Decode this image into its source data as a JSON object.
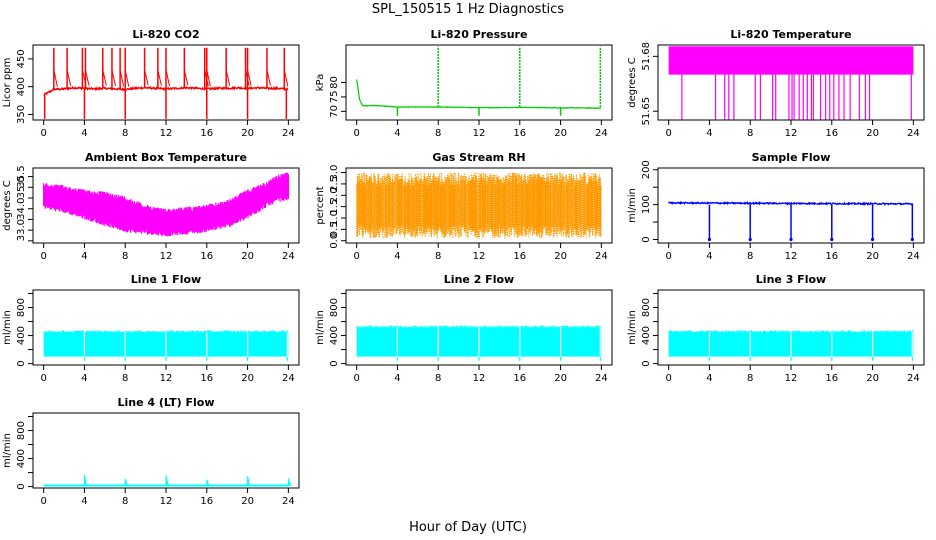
{
  "figure": {
    "title": "SPL_150515  1 Hz Diagnostics",
    "xlabel": "Hour of Day (UTC)"
  },
  "colors": {
    "co2": "#ff0000",
    "pressure": "#00cc00",
    "temperature": "#ff00ff",
    "box_temp": "#ff00ff",
    "rh_fill": "#ff9900",
    "rh_dots": "#cc8800",
    "sample_flow": "#0000ff",
    "line_flow": "#00ffff",
    "axis": "#000000"
  },
  "chart_data": [
    {
      "id": "co2",
      "type": "line",
      "title": "Li-820 CO2",
      "ylabel": "Licor ppm",
      "xlim": [
        0,
        24
      ],
      "ylim": [
        340,
        475
      ],
      "xticks": [
        0,
        4,
        8,
        12,
        16,
        20,
        24
      ],
      "yticks": [
        350,
        400,
        450
      ],
      "x": [
        0,
        1,
        2,
        3,
        4,
        5,
        6,
        7,
        8,
        9,
        10,
        11,
        12,
        13,
        14,
        15,
        16,
        17,
        18,
        19,
        20,
        21,
        22,
        23,
        24
      ],
      "values": [
        385,
        395,
        396,
        398,
        397,
        396,
        397,
        396,
        395,
        397,
        398,
        397,
        396,
        397,
        398,
        397,
        396,
        397,
        397,
        398,
        397,
        398,
        397,
        397,
        395
      ],
      "spikes_up": [
        1.0,
        2.3,
        3.8,
        4.1,
        5.8,
        6.7,
        7.5,
        8.0,
        9.9,
        11.2,
        12.0,
        13.8,
        15.8,
        16.0,
        17.9,
        19.8,
        20.0,
        21.9,
        23.6
      ],
      "spikes_down": [
        0.1,
        4.0,
        8.0,
        12.0,
        16.0,
        20.0,
        23.8
      ]
    },
    {
      "id": "pressure",
      "type": "line",
      "title": "Li-820 Pressure",
      "ylabel": "kPa",
      "xlim": [
        0,
        24
      ],
      "ylim": [
        67,
        93
      ],
      "xticks": [
        0,
        4,
        8,
        12,
        16,
        20,
        24
      ],
      "yticks": [
        70,
        75,
        80
      ],
      "x": [
        0,
        0.3,
        0.6,
        2,
        4,
        6,
        8,
        10,
        12,
        14,
        16,
        18,
        20,
        22,
        24
      ],
      "values": [
        81,
        74,
        72,
        72,
        71.5,
        71.5,
        71.5,
        71.4,
        71.3,
        71.3,
        71.4,
        71.3,
        71.2,
        71.2,
        71.1
      ],
      "spikes_up": [
        8.0,
        16.0,
        23.9
      ],
      "dips": [
        4.0,
        12.0,
        20.0
      ]
    },
    {
      "id": "temperature",
      "type": "area",
      "title": "Li-820 Temperature",
      "ylabel": "degrees C",
      "xlim": [
        0,
        24
      ],
      "ylim": [
        51.6452,
        51.6862
      ],
      "xticks": [
        0,
        4,
        8,
        12,
        16,
        20,
        24
      ],
      "yticks": [
        51.65,
        51.68
      ],
      "ytick_labels": [
        "51.65",
        "51.68"
      ],
      "band_low": 51.67,
      "band_high": 51.6855,
      "drops": [
        1.3,
        4.6,
        5.5,
        5.9,
        6.4,
        8.5,
        9.0,
        10.2,
        10.5,
        11.8,
        12.1,
        12.3,
        12.8,
        13.2,
        13.6,
        14.0,
        14.2,
        14.9,
        15.4,
        15.8,
        16.2,
        16.7,
        17.2,
        17.8,
        18.7,
        19.3,
        19.7,
        23.8
      ]
    },
    {
      "id": "box_temp",
      "type": "area",
      "title": "Ambient Box Temperature",
      "ylabel": "degrees C",
      "xlim": [
        0,
        24
      ],
      "ylim": [
        32.4,
        35.9
      ],
      "xticks": [
        0,
        4,
        8,
        12,
        16,
        20,
        24
      ],
      "yticks": [
        32.5,
        33.0,
        33.5,
        34.0,
        34.5,
        35.0,
        35.5
      ],
      "ytick_labels": [
        "",
        "33.0",
        "",
        "34.0",
        "",
        "35.0",
        "35.5"
      ],
      "x": [
        0,
        2,
        4,
        6,
        8,
        10,
        12,
        14,
        16,
        18,
        20,
        22,
        23,
        24
      ],
      "upper": [
        35.2,
        35.1,
        34.9,
        34.8,
        34.6,
        34.2,
        34.0,
        34.1,
        34.2,
        34.4,
        34.9,
        35.3,
        35.6,
        35.7
      ],
      "lower": [
        34.0,
        33.8,
        33.5,
        33.2,
        32.9,
        32.8,
        32.7,
        32.8,
        32.9,
        33.1,
        33.5,
        34.1,
        34.3,
        34.4
      ]
    },
    {
      "id": "rh",
      "type": "area",
      "title": "Gas Stream RH",
      "ylabel": "percent",
      "xlim": [
        0,
        24
      ],
      "ylim": [
        -0.1,
        3.2
      ],
      "xticks": [
        0,
        4,
        8,
        12,
        16,
        20,
        24
      ],
      "yticks": [
        0.0,
        0.5,
        1.0,
        1.5,
        2.0,
        2.5,
        3.0
      ],
      "ytick_labels": [
        "0.0",
        "0.5",
        "1.0",
        "1.5",
        "2.0",
        "2.5",
        "3.0"
      ],
      "band_low": 0.3,
      "band_high": 2.8
    },
    {
      "id": "sample_flow",
      "type": "line",
      "title": "Sample Flow",
      "ylabel": "ml/min",
      "xlim": [
        0,
        24
      ],
      "ylim": [
        -10,
        205
      ],
      "xticks": [
        0,
        4,
        8,
        12,
        16,
        20,
        24
      ],
      "yticks": [
        0,
        50,
        100,
        150,
        200
      ],
      "ytick_labels": [
        "0",
        "",
        "100",
        "",
        "200"
      ],
      "x": [
        0,
        24
      ],
      "values": [
        105,
        102
      ],
      "dips": [
        4.0,
        8.0,
        12.0,
        16.0,
        20.0,
        23.9
      ]
    },
    {
      "id": "line1",
      "type": "area",
      "title": "Line 1 Flow",
      "ylabel": "ml/min",
      "xlim": [
        0,
        24
      ],
      "ylim": [
        -20,
        1050
      ],
      "xticks": [
        0,
        4,
        8,
        12,
        16,
        20,
        24
      ],
      "yticks": [
        0,
        200,
        400,
        600,
        800,
        1000
      ],
      "ytick_labels": [
        "0",
        "",
        "400",
        "",
        "800",
        ""
      ],
      "band_low": 100,
      "band_high": 450,
      "gaps": [
        4.0,
        8.0,
        12.0,
        16.0,
        20.0,
        23.9
      ]
    },
    {
      "id": "line2",
      "type": "area",
      "title": "Line 2 Flow",
      "ylabel": "ml/min",
      "xlim": [
        0,
        24
      ],
      "ylim": [
        -20,
        1050
      ],
      "xticks": [
        0,
        4,
        8,
        12,
        16,
        20,
        24
      ],
      "yticks": [
        0,
        200,
        400,
        600,
        800,
        1000
      ],
      "ytick_labels": [
        "0",
        "",
        "400",
        "",
        "800",
        ""
      ],
      "band_low": 100,
      "band_high": 520,
      "gaps": [
        4.0,
        8.0,
        12.0,
        16.0,
        20.0,
        23.9
      ]
    },
    {
      "id": "line3",
      "type": "area",
      "title": "Line 3 Flow",
      "ylabel": "ml/min",
      "xlim": [
        0,
        24
      ],
      "ylim": [
        -20,
        1050
      ],
      "xticks": [
        0,
        4,
        8,
        12,
        16,
        20,
        24
      ],
      "yticks": [
        0,
        200,
        400,
        600,
        800,
        1000
      ],
      "ytick_labels": [
        "0",
        "",
        "400",
        "",
        "800",
        ""
      ],
      "band_low": 100,
      "band_high": 450,
      "gaps": [
        4.0,
        8.0,
        12.0,
        16.0,
        20.0,
        23.9
      ]
    },
    {
      "id": "line4",
      "type": "line",
      "title": "Line 4 (LT) Flow",
      "ylabel": "ml/min",
      "xlim": [
        0,
        24
      ],
      "ylim": [
        -20,
        1050
      ],
      "xticks": [
        0,
        4,
        8,
        12,
        16,
        20,
        24
      ],
      "yticks": [
        0,
        200,
        400,
        600,
        800,
        1000
      ],
      "ytick_labels": [
        "0",
        "",
        "400",
        "",
        "800",
        ""
      ],
      "x": [
        0,
        24
      ],
      "values": [
        15,
        15
      ],
      "spikes_up": [
        4.0,
        8.0,
        12.0,
        16.0,
        20.0,
        24.0
      ],
      "spike_values": [
        170,
        110,
        160,
        100,
        150,
        120
      ]
    }
  ]
}
